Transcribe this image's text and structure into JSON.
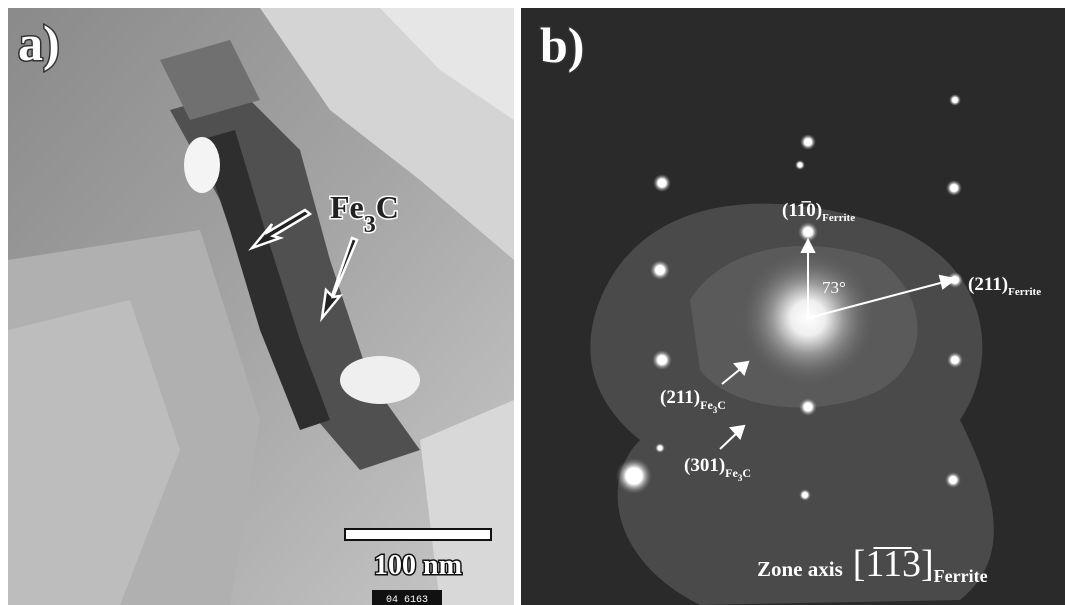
{
  "panel_a": {
    "label": "a)",
    "annotation": {
      "base": "Fe",
      "subscript": "3",
      "suffix": "C"
    },
    "scale_bar": "100 nm",
    "plate_number": "04 6163"
  },
  "panel_b": {
    "label": "b)",
    "angle": "73°",
    "reflections": [
      {
        "index": "(11̅0)",
        "phase": "Ferrite"
      },
      {
        "index": "(211)",
        "phase": "Ferrite"
      },
      {
        "index": "(211)",
        "phase": {
          "base": "Fe",
          "subscript": "3",
          "suffix": "C"
        }
      },
      {
        "index": "(301)",
        "phase": {
          "base": "Fe",
          "subscript": "3",
          "suffix": "C"
        }
      }
    ],
    "zone_axis": {
      "prefix": "Zone axis",
      "index": "[1̅1̅3]",
      "phase": "Ferrite"
    }
  }
}
